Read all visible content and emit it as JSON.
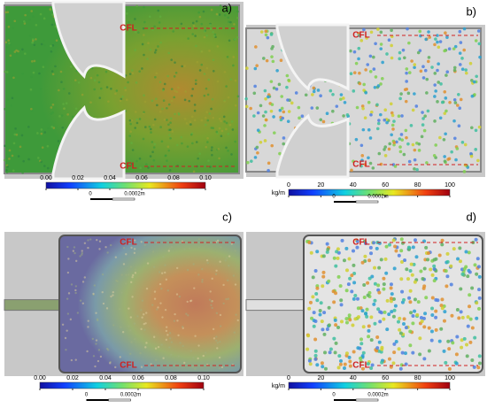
{
  "panels": [
    {
      "label": "a)",
      "annotations": [
        "CFL",
        "CFL"
      ],
      "colorbar": {
        "range": [
          0,
          0.1
        ],
        "ticks": [
          {
            "value": 0,
            "label": "0.00"
          },
          0.02,
          0.04,
          0.06,
          0.08,
          {
            "value": 0.1,
            "label": "0.10"
          }
        ]
      },
      "scale_bar": [
        "0",
        "0.0002m"
      ]
    },
    {
      "label": "b)",
      "annotations": [
        "CFL",
        "CFL"
      ],
      "colorbar": {
        "unit": "kg/m",
        "range": [
          0,
          100
        ],
        "ticks": [
          0,
          20,
          40,
          60,
          80,
          100
        ]
      },
      "scale_bar": [
        "0",
        "0.0002m"
      ]
    },
    {
      "label": "c)",
      "annotations": [
        "CFL",
        "CFL"
      ],
      "colorbar": {
        "range": [
          0,
          0.1
        ],
        "ticks": [
          {
            "value": 0,
            "label": "0.00"
          },
          0.02,
          0.04,
          0.06,
          0.08,
          {
            "value": 0.1,
            "label": "0.10"
          }
        ]
      },
      "scale_bar": [
        "0",
        "0.0002m"
      ]
    },
    {
      "label": "d)",
      "annotations": [
        "CFL",
        "CFL"
      ],
      "colorbar": {
        "unit": "kg/m",
        "range": [
          0,
          100
        ],
        "ticks": [
          0,
          20,
          40,
          60,
          80,
          100
        ]
      },
      "scale_bar": [
        "0",
        "0.0002m"
      ]
    }
  ]
}
